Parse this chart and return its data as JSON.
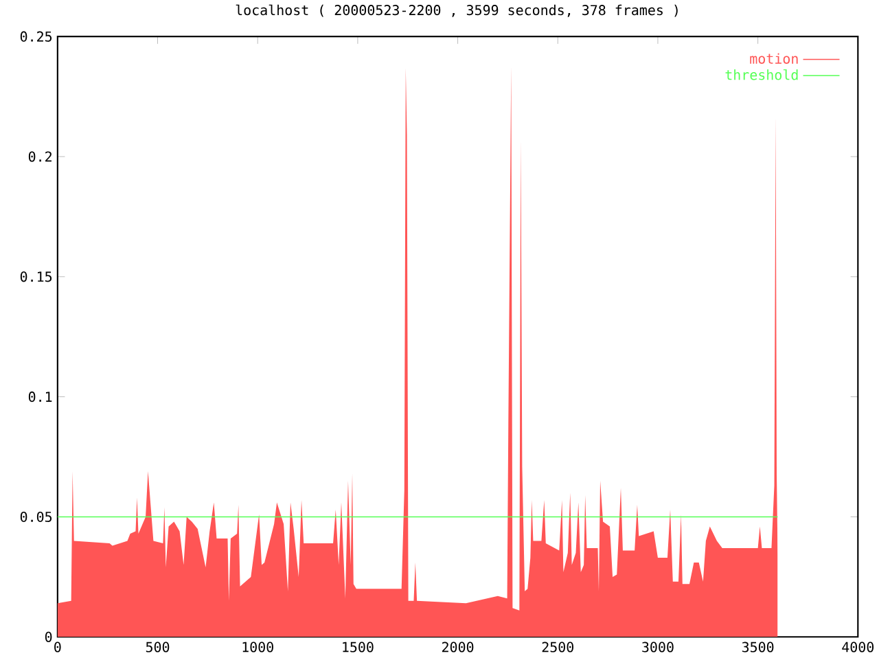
{
  "chart_data": {
    "type": "area",
    "title": "localhost ( 20000523-2200 , 3599 seconds, 378 frames )",
    "xlim": [
      0,
      4000
    ],
    "ylim": [
      0,
      0.25
    ],
    "xticks": [
      0,
      500,
      1000,
      1500,
      2000,
      2500,
      3000,
      3500,
      4000
    ],
    "yticks": [
      0,
      0.05,
      0.1,
      0.15,
      0.2,
      0.25
    ],
    "legend": "top right",
    "series": [
      {
        "name": "motion",
        "color": "#ff5555",
        "x": [
          0,
          68,
          75,
          82,
          260,
          274,
          349,
          363,
          390,
          397,
          404,
          440,
          452,
          465,
          479,
          527,
          534,
          541,
          555,
          582,
          610,
          630,
          645,
          671,
          700,
          740,
          760,
          781,
          795,
          850,
          856,
          865,
          897,
          904,
          912,
          966,
          1007,
          1020,
          1034,
          1082,
          1096,
          1130,
          1151,
          1164,
          1180,
          1205,
          1219,
          1230,
          1377,
          1390,
          1405,
          1418,
          1438,
          1452,
          1465,
          1473,
          1479,
          1493,
          1719,
          1733,
          1740,
          1746,
          1753,
          1780,
          1788,
          1796,
          2041,
          2200,
          2247,
          2253,
          2267,
          2274,
          2308,
          2315,
          2322,
          2335,
          2349,
          2363,
          2370,
          2377,
          2418,
          2432,
          2440,
          2507,
          2521,
          2528,
          2550,
          2562,
          2570,
          2590,
          2603,
          2615,
          2630,
          2637,
          2645,
          2700,
          2705,
          2712,
          2726,
          2760,
          2774,
          2795,
          2815,
          2825,
          2884,
          2897,
          2905,
          2979,
          3000,
          3048,
          3062,
          3075,
          3103,
          3116,
          3123,
          3158,
          3180,
          3205,
          3226,
          3240,
          3260,
          3295,
          3322,
          3500,
          3510,
          3520,
          3568,
          3582,
          3589,
          3594,
          3599
        ],
        "values": [
          0.014,
          0.015,
          0.069,
          0.04,
          0.039,
          0.038,
          0.04,
          0.043,
          0.044,
          0.058,
          0.043,
          0.05,
          0.069,
          0.055,
          0.04,
          0.039,
          0.054,
          0.029,
          0.046,
          0.048,
          0.044,
          0.03,
          0.05,
          0.048,
          0.045,
          0.029,
          0.044,
          0.056,
          0.041,
          0.041,
          0.015,
          0.041,
          0.043,
          0.055,
          0.021,
          0.025,
          0.051,
          0.03,
          0.031,
          0.047,
          0.056,
          0.047,
          0.019,
          0.056,
          0.045,
          0.025,
          0.057,
          0.039,
          0.039,
          0.053,
          0.03,
          0.056,
          0.016,
          0.065,
          0.03,
          0.068,
          0.022,
          0.02,
          0.02,
          0.061,
          0.237,
          0.209,
          0.015,
          0.015,
          0.031,
          0.015,
          0.014,
          0.017,
          0.016,
          0.089,
          0.238,
          0.012,
          0.011,
          0.207,
          0.071,
          0.019,
          0.02,
          0.033,
          0.057,
          0.04,
          0.04,
          0.057,
          0.039,
          0.036,
          0.057,
          0.027,
          0.035,
          0.06,
          0.03,
          0.035,
          0.056,
          0.027,
          0.03,
          0.059,
          0.037,
          0.037,
          0.019,
          0.065,
          0.048,
          0.046,
          0.025,
          0.026,
          0.062,
          0.036,
          0.036,
          0.055,
          0.042,
          0.044,
          0.033,
          0.033,
          0.053,
          0.023,
          0.023,
          0.051,
          0.022,
          0.022,
          0.031,
          0.031,
          0.023,
          0.04,
          0.046,
          0.04,
          0.037,
          0.037,
          0.046,
          0.037,
          0.037,
          0.063,
          0.217,
          0.068,
          0.034
        ]
      },
      {
        "name": "threshold",
        "type": "line",
        "color": "#55ff55",
        "x": [
          0,
          3599
        ],
        "values": [
          0.05,
          0.05
        ]
      }
    ]
  }
}
